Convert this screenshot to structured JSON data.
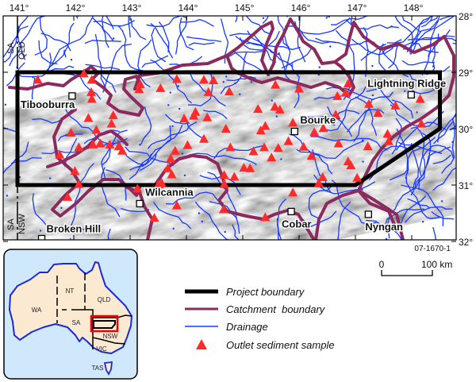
{
  "figure_id": "07-1670-1",
  "colors": {
    "project_boundary": "#000000",
    "catchment_boundary": "#8b2a5c",
    "drainage": "#1638ff",
    "sample": "#ff2a2a",
    "inset_sea": "#cfe8fb",
    "inset_land": "#fbe9d2"
  },
  "lon_ticks": [
    {
      "value": 141,
      "label": "141°"
    },
    {
      "value": 142,
      "label": "142°"
    },
    {
      "value": 143,
      "label": "143°"
    },
    {
      "value": 144,
      "label": "144°"
    },
    {
      "value": 145,
      "label": "145°"
    },
    {
      "value": 146,
      "label": "146°"
    },
    {
      "value": 147,
      "label": "147°"
    },
    {
      "value": 148,
      "label": "148°"
    }
  ],
  "lat_ticks": [
    {
      "value": 28,
      "label": "28°"
    },
    {
      "value": 29,
      "label": "29°"
    },
    {
      "value": 30,
      "label": "30°"
    },
    {
      "value": 31,
      "label": "31°"
    },
    {
      "value": 32,
      "label": "32°"
    }
  ],
  "state_labels": {
    "north_west": "SA",
    "north_east": "QLD",
    "south_west": "SA",
    "south_east": "NSW"
  },
  "towns": [
    {
      "name": "Tibooburra",
      "lon": 141.97,
      "lat": 29.42
    },
    {
      "name": "Bourke",
      "lon": 145.92,
      "lat": 30.05
    },
    {
      "name": "Lightning Ridge",
      "lon": 147.99,
      "lat": 29.4
    },
    {
      "name": "Wilcannia",
      "lon": 143.17,
      "lat": 31.33
    },
    {
      "name": "Cobar",
      "lon": 145.86,
      "lat": 31.47
    },
    {
      "name": "Nyngan",
      "lon": 147.23,
      "lat": 31.52
    },
    {
      "name": "Broken Hill",
      "lon": 141.43,
      "lat": 31.95
    }
  ],
  "project_boundary": [
    [
      141,
      29
    ],
    [
      148.5,
      29
    ],
    [
      148.5,
      30
    ],
    [
      147.0,
      31
    ],
    [
      141,
      31
    ]
  ],
  "samples": [
    [
      141.36,
      29.13
    ],
    [
      142.18,
      29.02
    ],
    [
      142.32,
      29.13
    ],
    [
      142.31,
      29.35
    ],
    [
      142.32,
      29.47
    ],
    [
      143.18,
      29.21
    ],
    [
      143.16,
      29.3
    ],
    [
      143.54,
      29.28
    ],
    [
      143.83,
      29.12
    ],
    [
      144.31,
      29.13
    ],
    [
      144.48,
      29.14
    ],
    [
      144.39,
      29.35
    ],
    [
      144.76,
      29.34
    ],
    [
      145.58,
      29.22
    ],
    [
      146.0,
      29.29
    ],
    [
      146.87,
      29.2
    ],
    [
      146.83,
      29.36
    ],
    [
      146.68,
      29.42
    ],
    [
      148.15,
      29.47
    ],
    [
      147.71,
      29.59
    ],
    [
      147.24,
      29.56
    ],
    [
      147.4,
      29.72
    ],
    [
      146.65,
      29.75
    ],
    [
      145.27,
      29.65
    ],
    [
      145.57,
      29.61
    ],
    [
      145.66,
      29.66
    ],
    [
      144.16,
      29.7
    ],
    [
      144.13,
      29.77
    ],
    [
      143.96,
      29.82
    ],
    [
      144.37,
      29.8
    ],
    [
      142.26,
      29.81
    ],
    [
      142.7,
      29.76
    ],
    [
      142.67,
      29.91
    ],
    [
      142.4,
      30.02
    ],
    [
      141.95,
      30.07
    ],
    [
      144.7,
      30.0
    ],
    [
      145.89,
      29.89
    ],
    [
      145.32,
      30.03
    ],
    [
      145.4,
      29.95
    ],
    [
      146.27,
      30.06
    ],
    [
      146.43,
      29.99
    ],
    [
      148.17,
      29.91
    ],
    [
      147.57,
      30.09
    ],
    [
      147.59,
      30.22
    ],
    [
      147.22,
      30.31
    ],
    [
      146.7,
      30.26
    ],
    [
      146.08,
      30.32
    ],
    [
      146.22,
      30.48
    ],
    [
      145.81,
      30.22
    ],
    [
      145.63,
      30.34
    ],
    [
      145.38,
      30.33
    ],
    [
      145.19,
      30.4
    ],
    [
      145.51,
      30.51
    ],
    [
      144.78,
      30.33
    ],
    [
      144.31,
      30.18
    ],
    [
      144.02,
      30.29
    ],
    [
      143.8,
      30.39
    ],
    [
      143.72,
      30.53
    ],
    [
      143.74,
      30.81
    ],
    [
      143.67,
      30.7
    ],
    [
      142.09,
      30.33
    ],
    [
      141.75,
      30.46
    ],
    [
      142.34,
      30.28
    ],
    [
      142.47,
      30.26
    ],
    [
      142.64,
      30.28
    ],
    [
      142.8,
      30.31
    ],
    [
      142.86,
      30.39
    ],
    [
      142.02,
      30.75
    ],
    [
      142.09,
      30.98
    ],
    [
      141.89,
      31.21
    ],
    [
      143.13,
      31.06
    ],
    [
      143.5,
      30.99
    ],
    [
      143.56,
      30.96
    ],
    [
      144.67,
      30.82
    ],
    [
      144.67,
      30.98
    ],
    [
      144.85,
      30.85
    ],
    [
      145.13,
      30.7
    ],
    [
      145.02,
      30.69
    ],
    [
      146.87,
      30.58
    ],
    [
      146.92,
      30.65
    ],
    [
      147.03,
      30.87
    ],
    [
      146.42,
      30.86
    ],
    [
      146.35,
      30.96
    ],
    [
      145.89,
      31.13
    ],
    [
      143.83,
      31.36
    ],
    [
      143.43,
      31.58
    ],
    [
      144.66,
      31.43
    ],
    [
      145.4,
      31.57
    ]
  ],
  "scale_bar": {
    "start_label": "0",
    "end_label": "100 km"
  },
  "legend": [
    {
      "symbol": "thick-black-line",
      "label": "Project boundary"
    },
    {
      "symbol": "purple-line",
      "label": "Catchment  boundary"
    },
    {
      "symbol": "blue-line",
      "label": "Drainage"
    },
    {
      "symbol": "red-triangle",
      "label": "Outlet sediment sample"
    }
  ],
  "inset": {
    "labels": {
      "wa": "WA",
      "nt": "NT",
      "qld": "QLD",
      "sa": "SA",
      "nsw": "NSW",
      "vic": "VIC",
      "tas": "TAS"
    }
  }
}
